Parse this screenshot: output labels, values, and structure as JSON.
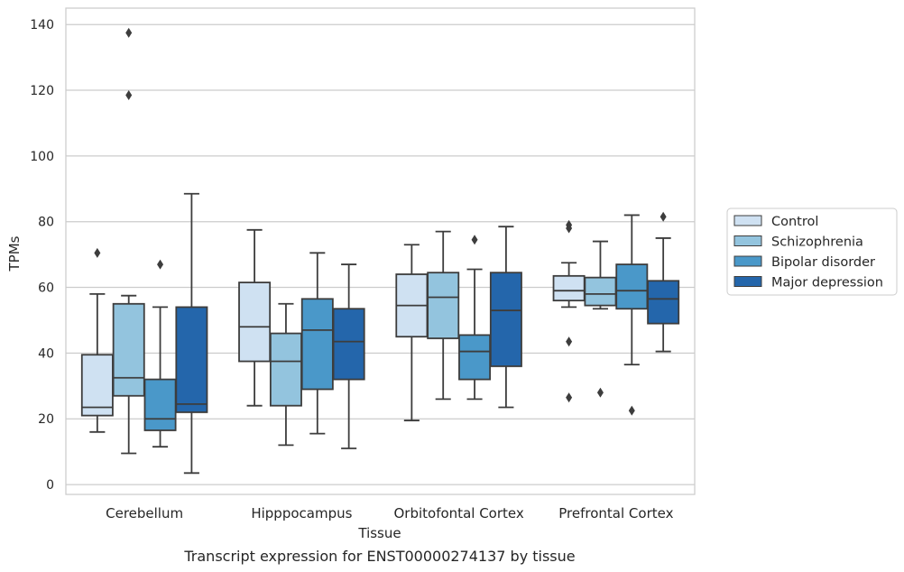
{
  "caption": "Transcript expression for ENST00000274137 by tissue",
  "chart_data": {
    "type": "box",
    "xlabel": "Tissue",
    "ylabel": "TPMs",
    "ylim": [
      -3,
      145
    ],
    "yticks": [
      0,
      20,
      40,
      60,
      80,
      100,
      120,
      140
    ],
    "grid": true,
    "legend_position": "right",
    "categories": [
      "Cerebellum",
      "Hipppocampus",
      "Orbitofontal Cortex",
      "Prefrontal Cortex"
    ],
    "series": [
      {
        "name": "Control",
        "color": "#cfe1f2",
        "boxes": [
          {
            "whisker_low": 16,
            "q1": 21,
            "median": 23.5,
            "q3": 39.5,
            "whisker_high": 58,
            "outliers": [
              70.5
            ]
          },
          {
            "whisker_low": 24,
            "q1": 37.5,
            "median": 48,
            "q3": 61.5,
            "whisker_high": 77.5,
            "outliers": []
          },
          {
            "whisker_low": 19.5,
            "q1": 45,
            "median": 54.5,
            "q3": 64,
            "whisker_high": 73,
            "outliers": []
          },
          {
            "whisker_low": 54,
            "q1": 56,
            "median": 59,
            "q3": 63.5,
            "whisker_high": 67.5,
            "outliers": [
              79,
              78,
              43.5,
              26.5
            ]
          }
        ]
      },
      {
        "name": "Schizophrenia",
        "color": "#93c4de",
        "boxes": [
          {
            "whisker_low": 9.5,
            "q1": 27,
            "median": 32.5,
            "q3": 55,
            "whisker_high": 57.5,
            "outliers": [
              137.5,
              118.5
            ]
          },
          {
            "whisker_low": 12,
            "q1": 24,
            "median": 37.5,
            "q3": 46,
            "whisker_high": 55,
            "outliers": []
          },
          {
            "whisker_low": 26,
            "q1": 44.5,
            "median": 57,
            "q3": 64.5,
            "whisker_high": 77,
            "outliers": []
          },
          {
            "whisker_low": 53.5,
            "q1": 54.5,
            "median": 58,
            "q3": 63,
            "whisker_high": 74,
            "outliers": [
              28
            ]
          }
        ]
      },
      {
        "name": "Bipolar disorder",
        "color": "#4a98c9",
        "boxes": [
          {
            "whisker_low": 11.5,
            "q1": 16.5,
            "median": 20,
            "q3": 32,
            "whisker_high": 54,
            "outliers": [
              67
            ]
          },
          {
            "whisker_low": 15.5,
            "q1": 29,
            "median": 47,
            "q3": 56.5,
            "whisker_high": 70.5,
            "outliers": []
          },
          {
            "whisker_low": 26,
            "q1": 32,
            "median": 40.5,
            "q3": 45.5,
            "whisker_high": 65.5,
            "outliers": [
              74.5
            ]
          },
          {
            "whisker_low": 36.5,
            "q1": 53.5,
            "median": 59,
            "q3": 67,
            "whisker_high": 82,
            "outliers": [
              22.5
            ]
          }
        ]
      },
      {
        "name": "Major depression",
        "color": "#2466ab",
        "boxes": [
          {
            "whisker_low": 3.5,
            "q1": 22,
            "median": 24.5,
            "q3": 54,
            "whisker_high": 88.5,
            "outliers": []
          },
          {
            "whisker_low": 11,
            "q1": 32,
            "median": 43.5,
            "q3": 53.5,
            "whisker_high": 67,
            "outliers": []
          },
          {
            "whisker_low": 23.5,
            "q1": 36,
            "median": 53,
            "q3": 64.5,
            "whisker_high": 78.5,
            "outliers": []
          },
          {
            "whisker_low": 40.5,
            "q1": 49,
            "median": 56.5,
            "q3": 62,
            "whisker_high": 75,
            "outliers": [
              81.5
            ]
          }
        ]
      }
    ]
  }
}
